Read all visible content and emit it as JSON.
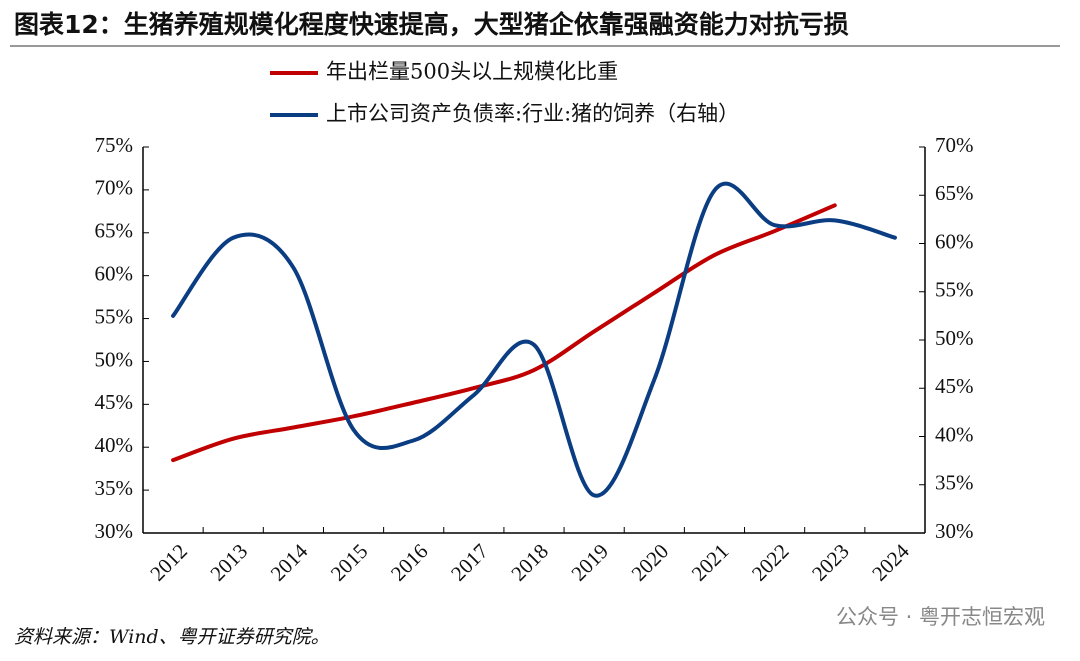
{
  "chart_data": {
    "type": "line",
    "title": "图表12：生猪养殖规模化程度快速提高，大型猪企依靠强融资能力对抗亏损",
    "categories": [
      "2012",
      "2013",
      "2014",
      "2015",
      "2016",
      "2017",
      "2018",
      "2019",
      "2020",
      "2021",
      "2022",
      "2023",
      "2024"
    ],
    "series": [
      {
        "name": "年出栏量500头以上规模化比重",
        "color": "#c00000",
        "values": [
          38.5,
          41.0,
          42.3,
          43.6,
          45.2,
          46.9,
          49.0,
          53.5,
          58.0,
          62.4,
          65.2,
          68.2,
          null
        ]
      },
      {
        "name": "上市公司资产负债率:行业:猪的饲养（右轴）",
        "color": "#0b3d83",
        "axis": "y2",
        "values": [
          52.5,
          60.6,
          57.5,
          40.7,
          39.6,
          44.3,
          49.5,
          33.9,
          45.9,
          65.5,
          61.9,
          62.4,
          60.6
        ]
      }
    ],
    "ylim": [
      30,
      75
    ],
    "yticks": [
      {
        "value": 30,
        "label": "30%"
      },
      {
        "value": 35,
        "label": "35%"
      },
      {
        "value": 40,
        "label": "40%"
      },
      {
        "value": 45,
        "label": "45%"
      },
      {
        "value": 50,
        "label": "50%"
      },
      {
        "value": 55,
        "label": "55%"
      },
      {
        "value": 60,
        "label": "60%"
      },
      {
        "value": 65,
        "label": "65%"
      },
      {
        "value": 70,
        "label": "70%"
      },
      {
        "value": 75,
        "label": "75%"
      }
    ],
    "y2lim": [
      30,
      70
    ],
    "y2ticks": [
      {
        "value": 30,
        "label": "30%"
      },
      {
        "value": 35,
        "label": "35%"
      },
      {
        "value": 40,
        "label": "40%"
      },
      {
        "value": 45,
        "label": "45%"
      },
      {
        "value": 50,
        "label": "50%"
      },
      {
        "value": 55,
        "label": "55%"
      },
      {
        "value": 60,
        "label": "60%"
      },
      {
        "value": 65,
        "label": "65%"
      },
      {
        "value": 70,
        "label": "70%"
      }
    ],
    "source": "资料来源：Wind、粤开证券研究院。",
    "watermark": "公众号 · 粤开志恒宏观"
  }
}
